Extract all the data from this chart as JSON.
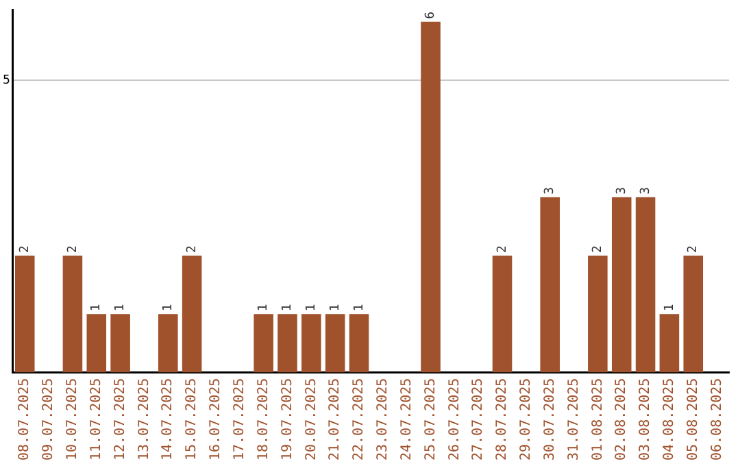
{
  "chart_data": {
    "type": "bar",
    "categories": [
      "08.07.2025",
      "09.07.2025",
      "10.07.2025",
      "11.07.2025",
      "12.07.2025",
      "13.07.2025",
      "14.07.2025",
      "15.07.2025",
      "16.07.2025",
      "17.07.2025",
      "18.07.2025",
      "19.07.2025",
      "20.07.2025",
      "21.07.2025",
      "22.07.2025",
      "23.07.2025",
      "24.07.2025",
      "25.07.2025",
      "26.07.2025",
      "27.07.2025",
      "28.07.2025",
      "29.07.2025",
      "30.07.2025",
      "31.07.2025",
      "01.08.2025",
      "02.08.2025",
      "03.08.2025",
      "04.08.2025",
      "05.08.2025",
      "06.08.2025"
    ],
    "values": [
      2,
      0,
      2,
      1,
      1,
      0,
      1,
      2,
      0,
      0,
      1,
      1,
      1,
      1,
      1,
      0,
      0,
      6,
      0,
      0,
      2,
      0,
      3,
      0,
      2,
      3,
      3,
      1,
      2,
      0
    ],
    "value_labels": [
      "2",
      null,
      "2",
      "1",
      "1",
      null,
      "1",
      "2",
      null,
      null,
      "1",
      "1",
      "1",
      "1",
      "1",
      null,
      null,
      "6",
      null,
      null,
      "2",
      null,
      "3",
      null,
      "2",
      "3",
      "3",
      "1",
      "2",
      null
    ],
    "color": "#a0522d",
    "ylim": [
      0,
      6.2
    ],
    "yticks": [
      5
    ],
    "grid": "y",
    "legend": false
  }
}
